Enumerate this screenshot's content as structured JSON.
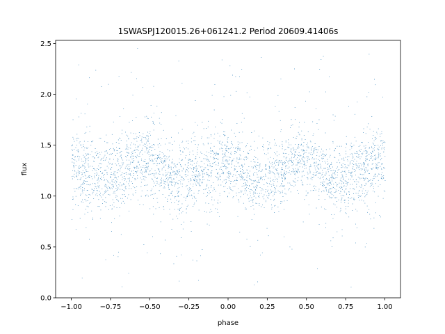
{
  "chart_data": {
    "type": "scatter",
    "title": "1SWASPJ120015.26+061241.2 Period 20609.41406s",
    "xlabel": "phase",
    "ylabel": "flux",
    "xlim": [
      -1.1,
      1.1
    ],
    "ylim": [
      0.0,
      2.53
    ],
    "xticks": [
      -1.0,
      -0.75,
      -0.5,
      -0.25,
      0.0,
      0.25,
      0.5,
      0.75,
      1.0
    ],
    "xtick_labels": [
      "−1.00",
      "−0.75",
      "−0.50",
      "−0.25",
      "0.00",
      "0.25",
      "0.50",
      "0.75",
      "1.00"
    ],
    "yticks": [
      0.0,
      0.5,
      1.0,
      1.5,
      2.0,
      2.5
    ],
    "ytick_labels": [
      "0.0",
      "0.5",
      "1.0",
      "1.5",
      "2.0",
      "2.5"
    ],
    "grid": false,
    "legend": false,
    "marker_color": "#1f77b4",
    "series": [
      {
        "profile": {
          "phase": [
            -1.0,
            -0.8,
            -0.55,
            -0.3,
            -0.05,
            0.2,
            0.45,
            0.7,
            0.95,
            1.0
          ],
          "flux": [
            1.26,
            1.18,
            1.36,
            1.17,
            1.33,
            1.17,
            1.35,
            1.16,
            1.32,
            1.31
          ]
        },
        "scatter_sigma": 0.16,
        "outlier_range": [
          0.1,
          2.4
        ]
      }
    ]
  }
}
